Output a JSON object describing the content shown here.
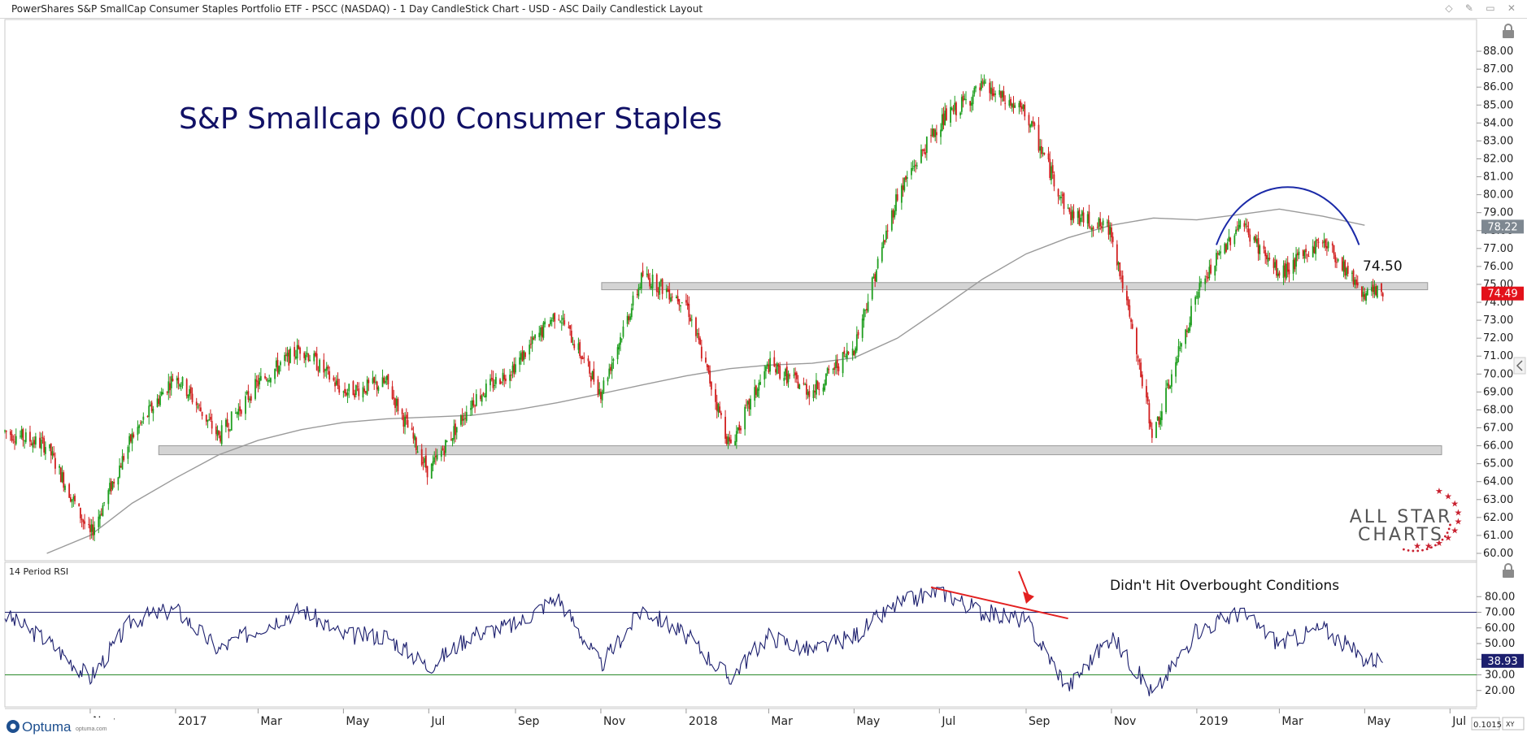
{
  "window": {
    "title": "PowerShares S&P SmallCap Consumer Staples Portfolio ETF - PSCC (NASDAQ) - 1 Day CandleStick Chart - USD - ASC Daily Candlestick Layout"
  },
  "branding": {
    "watermark_line1": "ALL STAR",
    "watermark_line2": "CHARTS",
    "footer_logo": "Optuma",
    "footer_url": "optuma.com",
    "zoom_value": "0.1015",
    "xy_label": "XY"
  },
  "chart_data": [
    {
      "type": "candlestick",
      "title": "S&P Smallcap 600 Consumer Staples",
      "ylim": [
        60,
        89
      ],
      "yticks": [
        60,
        61,
        62,
        63,
        64,
        65,
        66,
        67,
        68,
        69,
        70,
        71,
        72,
        73,
        74,
        75,
        76,
        77,
        78,
        79,
        80,
        81,
        82,
        83,
        84,
        85,
        86,
        87,
        88
      ],
      "ytick_labels": [
        "60.00",
        "61.00",
        "62.00",
        "63.00",
        "64.00",
        "65.00",
        "66.00",
        "67.00",
        "68.00",
        "69.00",
        "70.00",
        "71.00",
        "72.00",
        "73.00",
        "74.00",
        "75.00",
        "76.00",
        "77.00",
        "78.00",
        "79.00",
        "80.00",
        "81.00",
        "82.00",
        "83.00",
        "84.00",
        "85.00",
        "86.00",
        "87.00",
        "88.00"
      ],
      "x_labels": [
        "Nov",
        "2017",
        "Mar",
        "May",
        "Jul",
        "Sep",
        "Nov",
        "2018",
        "Mar",
        "May",
        "Jul",
        "Sep",
        "Nov",
        "2019",
        "Mar",
        "May",
        "Jul"
      ],
      "x_positions": [
        "2016-11",
        "2017-01",
        "2017-03",
        "2017-05",
        "2017-07",
        "2017-09",
        "2017-11",
        "2018-01",
        "2018-03",
        "2018-05",
        "2018-07",
        "2018-09",
        "2018-11",
        "2019-01",
        "2019-03",
        "2019-05",
        "2019-07"
      ],
      "price_path": [
        [
          "2016-09",
          66.8
        ],
        [
          "2016-10",
          66.0
        ],
        [
          "2016-11",
          61.0
        ],
        [
          "2016-12",
          66.5
        ],
        [
          "2017-01",
          70.0
        ],
        [
          "2017-02",
          66.5
        ],
        [
          "2017-03",
          69.5
        ],
        [
          "2017-04",
          71.5
        ],
        [
          "2017-05",
          69.0
        ],
        [
          "2017-06",
          69.5
        ],
        [
          "2017-07",
          64.5
        ],
        [
          "2017-08",
          68.5
        ],
        [
          "2017-09",
          70.5
        ],
        [
          "2017-10",
          73.5
        ],
        [
          "2017-11",
          69.0
        ],
        [
          "2017-12",
          75.5
        ],
        [
          "2018-01",
          74.0
        ],
        [
          "2018-02",
          66.0
        ],
        [
          "2018-03",
          70.5
        ],
        [
          "2018-04",
          69.0
        ],
        [
          "2018-05",
          71.5
        ],
        [
          "2018-06",
          80.0
        ],
        [
          "2018-07",
          84.0
        ],
        [
          "2018-08",
          86.0
        ],
        [
          "2018-09",
          84.5
        ],
        [
          "2018-10",
          79.0
        ],
        [
          "2018-11",
          78.0
        ],
        [
          "2018-12",
          66.5
        ],
        [
          "2019-01",
          74.5
        ],
        [
          "2019-02",
          78.5
        ],
        [
          "2019-03",
          75.5
        ],
        [
          "2019-04",
          77.5
        ],
        [
          "2019-05",
          74.49
        ]
      ],
      "moving_average_200": [
        [
          "2016-10",
          60.0
        ],
        [
          "2016-11",
          61.0
        ],
        [
          "2016-12",
          62.8
        ],
        [
          "2017-01",
          64.2
        ],
        [
          "2017-02",
          65.5
        ],
        [
          "2017-03",
          66.3
        ],
        [
          "2017-04",
          66.9
        ],
        [
          "2017-05",
          67.3
        ],
        [
          "2017-06",
          67.5
        ],
        [
          "2017-07",
          67.6
        ],
        [
          "2017-08",
          67.7
        ],
        [
          "2017-09",
          68.0
        ],
        [
          "2017-10",
          68.4
        ],
        [
          "2017-11",
          68.9
        ],
        [
          "2017-12",
          69.4
        ],
        [
          "2018-01",
          69.9
        ],
        [
          "2018-02",
          70.3
        ],
        [
          "2018-03",
          70.5
        ],
        [
          "2018-04",
          70.6
        ],
        [
          "2018-05",
          70.9
        ],
        [
          "2018-06",
          72.0
        ],
        [
          "2018-07",
          73.6
        ],
        [
          "2018-08",
          75.3
        ],
        [
          "2018-09",
          76.7
        ],
        [
          "2018-10",
          77.6
        ],
        [
          "2018-11",
          78.3
        ],
        [
          "2018-12",
          78.7
        ],
        [
          "2019-01",
          78.6
        ],
        [
          "2019-02",
          78.9
        ],
        [
          "2019-03",
          79.2
        ],
        [
          "2019-04",
          78.8
        ],
        [
          "2019-05",
          78.3
        ]
      ],
      "support_zones": [
        [
          74.7,
          75.1
        ],
        [
          65.5,
          66.0
        ]
      ],
      "current_price": 74.49,
      "current_price_label": "74.49",
      "ma_value": 78.22,
      "ma_value_label": "78.22",
      "level_annotation": "74.50",
      "colors": {
        "up": "#1e9e1e",
        "down": "#d11f1f",
        "ma": "#9a9a9a",
        "zone": "#d4d4d4",
        "title": "#111166",
        "arc": "#1b2aa8",
        "price_badge": "#e3111a",
        "ma_badge": "#7e8891"
      }
    },
    {
      "type": "line",
      "title": "14 Period RSI",
      "ylim": [
        10,
        90
      ],
      "yticks": [
        20,
        30,
        40,
        50,
        60,
        70,
        80
      ],
      "ytick_labels": [
        "20.00",
        "30.00",
        "40.00",
        "50.00",
        "60.00",
        "70.00",
        "80.00"
      ],
      "overbought": 70,
      "oversold": 30,
      "rsi_path": [
        [
          "2016-09",
          68
        ],
        [
          "2016-10",
          52
        ],
        [
          "2016-11",
          28
        ],
        [
          "2016-12",
          65
        ],
        [
          "2017-01",
          72
        ],
        [
          "2017-02",
          46
        ],
        [
          "2017-03",
          60
        ],
        [
          "2017-04",
          72
        ],
        [
          "2017-05",
          55
        ],
        [
          "2017-06",
          55
        ],
        [
          "2017-07",
          35
        ],
        [
          "2017-08",
          56
        ],
        [
          "2017-09",
          62
        ],
        [
          "2017-10",
          80
        ],
        [
          "2017-11",
          36
        ],
        [
          "2017-12",
          72
        ],
        [
          "2018-01",
          55
        ],
        [
          "2018-02",
          28
        ],
        [
          "2018-03",
          55
        ],
        [
          "2018-04",
          45
        ],
        [
          "2018-05",
          55
        ],
        [
          "2018-06",
          75
        ],
        [
          "2018-07",
          84
        ],
        [
          "2018-08",
          70
        ],
        [
          "2018-09",
          65
        ],
        [
          "2018-10",
          22
        ],
        [
          "2018-11",
          55
        ],
        [
          "2018-12",
          17
        ],
        [
          "2019-01",
          58
        ],
        [
          "2019-02",
          70
        ],
        [
          "2019-03",
          50
        ],
        [
          "2019-04",
          60
        ],
        [
          "2019-05",
          40
        ]
      ],
      "current_value": 38.93,
      "current_value_label": "38.93",
      "annotation": "Didn't Hit Overbought Conditions",
      "colors": {
        "line": "#1c1f6e",
        "ob_line": "#1c1f6e",
        "os_line": "#2a8a2a",
        "trend": "#e32020",
        "badge": "#1c1f6e"
      }
    }
  ]
}
